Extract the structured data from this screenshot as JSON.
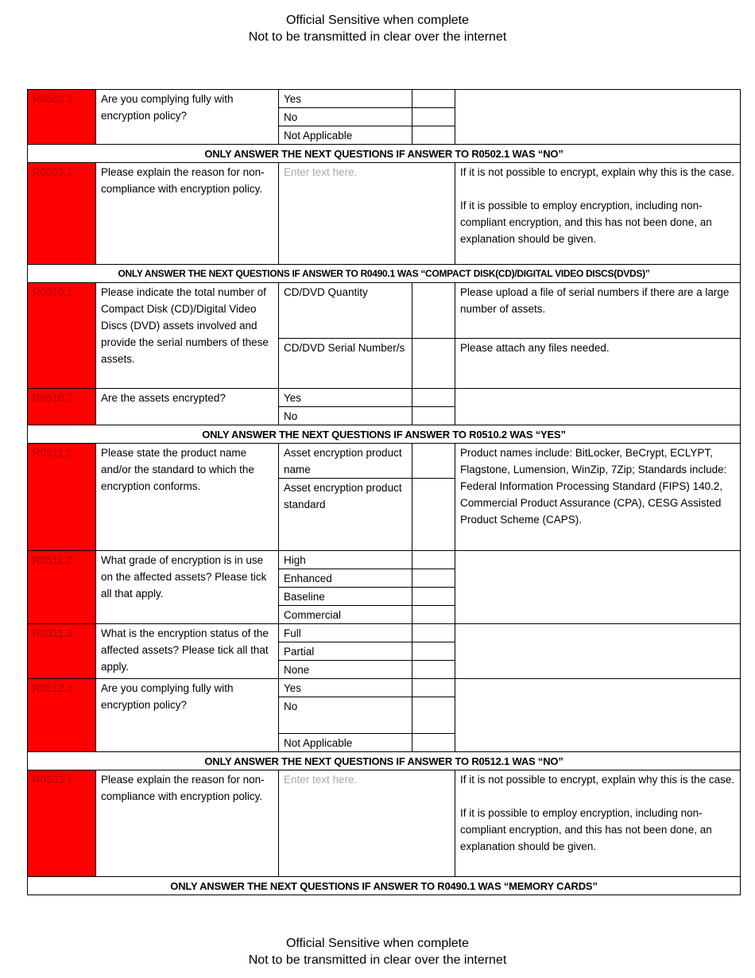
{
  "header": {
    "line1": "Official Sensitive when complete",
    "line2": "Not to be transmitted in clear over the internet"
  },
  "footer": {
    "line1": "Official Sensitive when complete",
    "line2": "Not to be transmitted in clear over the internet"
  },
  "rows": [
    {
      "type": "q",
      "id": "R0502.1",
      "question": "Are you complying fully with encryption policy?",
      "options": [
        "Yes",
        "No",
        "Not Applicable"
      ],
      "guidance": ""
    },
    {
      "type": "banner",
      "text": "ONLY ANSWER THE NEXT QUESTIONS IF ANSWER TO R0502.1 WAS “NO”"
    },
    {
      "type": "q",
      "id": "R0503.1",
      "question": "Please explain the reason for non-compliance with encryption policy.",
      "placeholder": "Enter text here.",
      "guidance": "If it is not possible to encrypt, explain why this is the case.\n\nIf it is possible to employ encryption, including non-compliant encryption, and this has not been done, an explanation should be given."
    },
    {
      "type": "banner",
      "long": true,
      "text": "ONLY ANSWER THE NEXT QUESTIONS IF ANSWER TO R0490.1 WAS “COMPACT DISK(CD)/DIGITAL VIDEO DISCS(DVDS)”"
    },
    {
      "type": "q",
      "id": "R0510.1",
      "question": "Please indicate the total number of Compact Disk (CD)/Digital Video Discs (DVD) assets involved and provide the serial numbers of these assets.",
      "options": [
        "CD/DVD Quantity",
        "CD/DVD Serial Number/s"
      ],
      "guidance_per_option": [
        "Please upload a file of serial numbers if there are a large number of assets.",
        "Please attach any files needed."
      ]
    },
    {
      "type": "q",
      "id": "R0510.2",
      "question": "Are the assets encrypted?",
      "options": [
        "Yes",
        "No"
      ],
      "guidance": ""
    },
    {
      "type": "banner",
      "text": "ONLY ANSWER THE NEXT QUESTIONS IF ANSWER TO R0510.2 WAS “YES”"
    },
    {
      "type": "q",
      "id": "R0511.1",
      "question": "Please state the product name and/or the standard to which the encryption conforms.",
      "options": [
        "Asset encryption product name",
        "Asset encryption product standard"
      ],
      "guidance": "Product names include: BitLocker, BeCrypt, ECLYPT, Flagstone, Lumension, WinZip, 7Zip; Standards include: Federal Information Processing Standard (FIPS) 140.2, Commercial Product Assurance (CPA), CESG Assisted Product Scheme (CAPS)."
    },
    {
      "type": "q",
      "id": "R0511.2",
      "question": "What grade of encryption is in use on the affected assets? Please tick all that apply.",
      "options": [
        "High",
        "Enhanced",
        "Baseline",
        "Commercial"
      ],
      "guidance": ""
    },
    {
      "type": "q",
      "id": "R0511.3",
      "question": "What is the encryption status of the affected assets? Please tick all that apply.",
      "options": [
        "Full",
        "Partial",
        "None"
      ],
      "guidance": ""
    },
    {
      "type": "q",
      "id": "R0512.1",
      "question": "Are you complying fully with encryption policy?",
      "options": [
        "Yes",
        "No",
        "Not Applicable"
      ],
      "guidance": ""
    },
    {
      "type": "banner",
      "text": "ONLY ANSWER THE NEXT QUESTIONS IF ANSWER TO R0512.1 WAS “NO”"
    },
    {
      "type": "q",
      "id": "R0503.1",
      "question": "Please explain the reason for non-compliance with encryption policy.",
      "placeholder": "Enter text here.",
      "guidance": "If it is not possible to encrypt, explain why this is the case.\n\nIf it is possible to employ encryption, including non-compliant encryption, and this has not been done, an explanation should be given."
    },
    {
      "type": "banner",
      "text": "ONLY ANSWER THE NEXT QUESTIONS IF ANSWER TO R0490.1 WAS “MEMORY CARDS”"
    }
  ]
}
